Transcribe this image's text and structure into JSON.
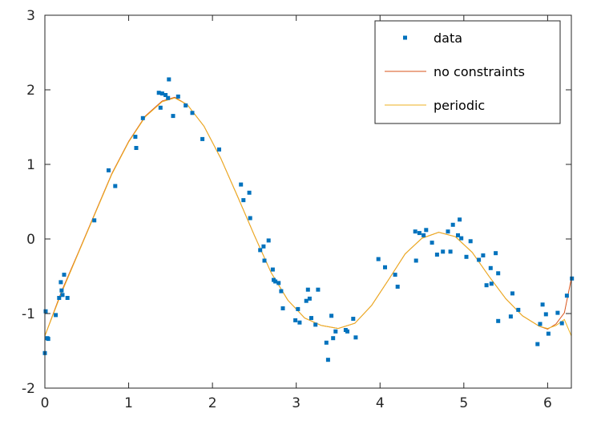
{
  "chart_data": {
    "type": "scatter",
    "title": "",
    "xlabel": "",
    "ylabel": "",
    "xlim": [
      0,
      6.2832
    ],
    "ylim": [
      -2,
      3
    ],
    "x_ticks": [
      0,
      1,
      2,
      3,
      4,
      5,
      6
    ],
    "y_ticks": [
      -2,
      -1,
      0,
      1,
      2,
      3
    ],
    "x_tick_labels": [
      "0",
      "1",
      "2",
      "3",
      "4",
      "5",
      "6"
    ],
    "y_tick_labels": [
      "-2",
      "-1",
      "0",
      "1",
      "2",
      "3"
    ],
    "grid": false,
    "legend": {
      "placement": "top-right",
      "entries": [
        "data",
        "no constraints",
        "periodic"
      ]
    },
    "series": [
      {
        "name": "data",
        "style": "markers",
        "color": "#0072BD",
        "points": [
          [
            0.0,
            -1.53
          ],
          [
            0.01,
            -0.97
          ],
          [
            0.03,
            -1.33
          ],
          [
            0.04,
            -1.34
          ],
          [
            0.13,
            -1.02
          ],
          [
            0.17,
            -0.79
          ],
          [
            0.19,
            -0.58
          ],
          [
            0.2,
            -0.69
          ],
          [
            0.21,
            -0.75
          ],
          [
            0.23,
            -0.48
          ],
          [
            0.27,
            -0.79
          ],
          [
            0.59,
            0.25
          ],
          [
            0.76,
            0.92
          ],
          [
            0.84,
            0.71
          ],
          [
            1.08,
            1.37
          ],
          [
            1.09,
            1.22
          ],
          [
            1.17,
            1.62
          ],
          [
            1.36,
            1.96
          ],
          [
            1.38,
            1.76
          ],
          [
            1.4,
            1.95
          ],
          [
            1.44,
            1.93
          ],
          [
            1.47,
            1.89
          ],
          [
            1.48,
            2.14
          ],
          [
            1.53,
            1.65
          ],
          [
            1.59,
            1.91
          ],
          [
            1.68,
            1.79
          ],
          [
            1.76,
            1.69
          ],
          [
            1.88,
            1.34
          ],
          [
            2.08,
            1.2
          ],
          [
            2.34,
            0.73
          ],
          [
            2.37,
            0.52
          ],
          [
            2.44,
            0.62
          ],
          [
            2.45,
            0.28
          ],
          [
            2.57,
            -0.15
          ],
          [
            2.61,
            -0.1
          ],
          [
            2.62,
            -0.29
          ],
          [
            2.67,
            -0.02
          ],
          [
            2.72,
            -0.41
          ],
          [
            2.73,
            -0.55
          ],
          [
            2.75,
            -0.57
          ],
          [
            2.79,
            -0.59
          ],
          [
            2.82,
            -0.7
          ],
          [
            2.84,
            -0.93
          ],
          [
            2.99,
            -1.09
          ],
          [
            3.02,
            -0.94
          ],
          [
            3.04,
            -1.12
          ],
          [
            3.12,
            -0.83
          ],
          [
            3.14,
            -0.68
          ],
          [
            3.16,
            -0.8
          ],
          [
            3.18,
            -1.06
          ],
          [
            3.23,
            -1.15
          ],
          [
            3.26,
            -0.68
          ],
          [
            3.36,
            -1.39
          ],
          [
            3.38,
            -1.62
          ],
          [
            3.42,
            -1.03
          ],
          [
            3.44,
            -1.33
          ],
          [
            3.47,
            -1.24
          ],
          [
            3.59,
            -1.22
          ],
          [
            3.61,
            -1.24
          ],
          [
            3.68,
            -1.07
          ],
          [
            3.71,
            -1.32
          ],
          [
            3.98,
            -0.27
          ],
          [
            4.06,
            -0.38
          ],
          [
            4.18,
            -0.48
          ],
          [
            4.21,
            -0.64
          ],
          [
            4.42,
            0.1
          ],
          [
            4.43,
            -0.29
          ],
          [
            4.47,
            0.08
          ],
          [
            4.52,
            0.05
          ],
          [
            4.55,
            0.12
          ],
          [
            4.62,
            -0.05
          ],
          [
            4.68,
            -0.21
          ],
          [
            4.75,
            -0.17
          ],
          [
            4.81,
            0.1
          ],
          [
            4.84,
            -0.17
          ],
          [
            4.87,
            0.19
          ],
          [
            4.93,
            0.05
          ],
          [
            4.95,
            0.26
          ],
          [
            4.97,
            0.01
          ],
          [
            5.03,
            -0.24
          ],
          [
            5.08,
            -0.03
          ],
          [
            5.18,
            -0.28
          ],
          [
            5.23,
            -0.22
          ],
          [
            5.27,
            -0.62
          ],
          [
            5.32,
            -0.39
          ],
          [
            5.33,
            -0.6
          ],
          [
            5.38,
            -0.19
          ],
          [
            5.41,
            -0.46
          ],
          [
            5.41,
            -1.1
          ],
          [
            5.56,
            -1.04
          ],
          [
            5.58,
            -0.73
          ],
          [
            5.65,
            -0.95
          ],
          [
            5.88,
            -1.41
          ],
          [
            5.91,
            -1.14
          ],
          [
            5.94,
            -0.88
          ],
          [
            5.98,
            -1.01
          ],
          [
            6.01,
            -1.27
          ],
          [
            6.12,
            -0.99
          ],
          [
            6.17,
            -1.13
          ],
          [
            6.23,
            -0.76
          ],
          [
            6.29,
            -0.53
          ]
        ]
      },
      {
        "name": "no constraints",
        "style": "line",
        "color": "#D95319",
        "points": [
          [
            0.0,
            -1.3
          ],
          [
            0.2,
            -0.7
          ],
          [
            0.4,
            -0.18
          ],
          [
            0.6,
            0.35
          ],
          [
            0.8,
            0.88
          ],
          [
            1.0,
            1.31
          ],
          [
            1.2,
            1.65
          ],
          [
            1.4,
            1.85
          ],
          [
            1.55,
            1.9
          ],
          [
            1.7,
            1.8
          ],
          [
            1.9,
            1.51
          ],
          [
            2.1,
            1.08
          ],
          [
            2.3,
            0.57
          ],
          [
            2.5,
            0.05
          ],
          [
            2.7,
            -0.45
          ],
          [
            2.9,
            -0.82
          ],
          [
            3.1,
            -1.06
          ],
          [
            3.3,
            -1.16
          ],
          [
            3.5,
            -1.2
          ],
          [
            3.7,
            -1.13
          ],
          [
            3.9,
            -0.89
          ],
          [
            4.1,
            -0.55
          ],
          [
            4.3,
            -0.2
          ],
          [
            4.5,
            0.01
          ],
          [
            4.7,
            0.09
          ],
          [
            4.9,
            0.03
          ],
          [
            5.1,
            -0.18
          ],
          [
            5.3,
            -0.5
          ],
          [
            5.5,
            -0.8
          ],
          [
            5.7,
            -1.03
          ],
          [
            5.9,
            -1.17
          ],
          [
            6.0,
            -1.21
          ],
          [
            6.1,
            -1.14
          ],
          [
            6.2,
            -0.99
          ],
          [
            6.2832,
            -0.53
          ]
        ]
      },
      {
        "name": "periodic",
        "style": "line",
        "color": "#EDB120",
        "points": [
          [
            0.0,
            -1.3
          ],
          [
            0.2,
            -0.72
          ],
          [
            0.4,
            -0.19
          ],
          [
            0.6,
            0.34
          ],
          [
            0.8,
            0.87
          ],
          [
            1.0,
            1.3
          ],
          [
            1.2,
            1.64
          ],
          [
            1.4,
            1.84
          ],
          [
            1.55,
            1.89
          ],
          [
            1.7,
            1.8
          ],
          [
            1.9,
            1.51
          ],
          [
            2.1,
            1.08
          ],
          [
            2.3,
            0.57
          ],
          [
            2.5,
            0.05
          ],
          [
            2.7,
            -0.45
          ],
          [
            2.9,
            -0.82
          ],
          [
            3.1,
            -1.06
          ],
          [
            3.3,
            -1.16
          ],
          [
            3.5,
            -1.2
          ],
          [
            3.7,
            -1.13
          ],
          [
            3.9,
            -0.89
          ],
          [
            4.1,
            -0.55
          ],
          [
            4.3,
            -0.2
          ],
          [
            4.5,
            0.01
          ],
          [
            4.7,
            0.09
          ],
          [
            4.9,
            0.03
          ],
          [
            5.1,
            -0.18
          ],
          [
            5.3,
            -0.5
          ],
          [
            5.5,
            -0.8
          ],
          [
            5.7,
            -1.03
          ],
          [
            5.9,
            -1.17
          ],
          [
            6.0,
            -1.2
          ],
          [
            6.1,
            -1.16
          ],
          [
            6.2,
            -1.08
          ],
          [
            6.2832,
            -1.3
          ]
        ]
      }
    ]
  }
}
